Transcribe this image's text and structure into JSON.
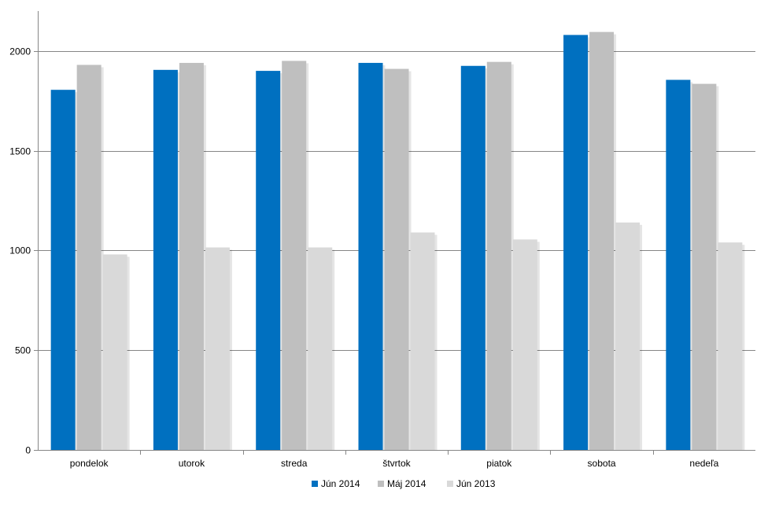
{
  "chart_data": {
    "type": "bar",
    "title": "",
    "xlabel": "",
    "ylabel": "",
    "ylim": [
      0,
      2200
    ],
    "yticks": [
      0,
      500,
      1000,
      1500,
      2000
    ],
    "grid": true,
    "legend_position": "bottom",
    "categories": [
      "pondelok",
      "utorok",
      "streda",
      "štvrtok",
      "piatok",
      "sobota",
      "nedeľa"
    ],
    "series": [
      {
        "name": "Jún 2014",
        "color": "#0070C0",
        "values": [
          1805,
          1905,
          1900,
          1940,
          1925,
          2080,
          1855
        ]
      },
      {
        "name": "Máj 2014",
        "color": "#BFBFBF",
        "values": [
          1930,
          1940,
          1950,
          1910,
          1945,
          2095,
          1835
        ]
      },
      {
        "name": "Jún 2013",
        "color": "#D9D9D9",
        "values": [
          980,
          1015,
          1015,
          1090,
          1055,
          1140,
          1040
        ]
      }
    ]
  }
}
